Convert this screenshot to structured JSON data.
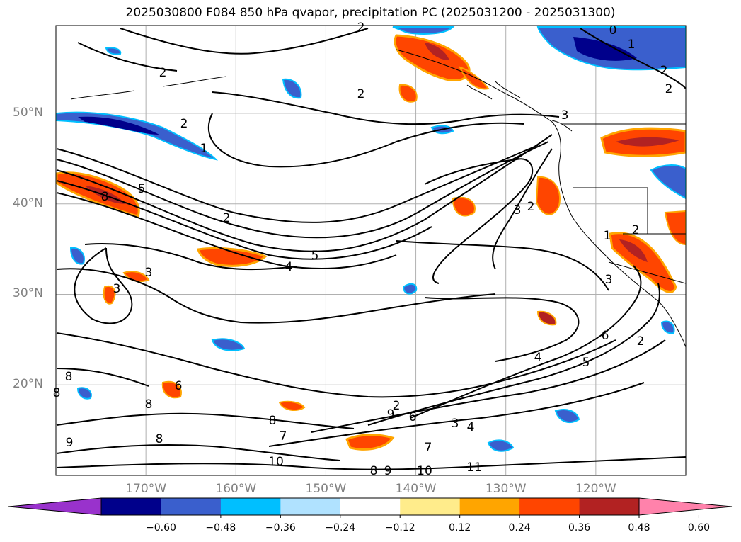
{
  "title": "2025030800 F084 850 hPa qvapor, precipitation PC (2025031200 - 2025031300)",
  "lat_axis": {
    "labels": [
      "50°N",
      "40°N",
      "30°N",
      "20°N"
    ],
    "values": [
      50,
      40,
      30,
      20
    ]
  },
  "lon_axis": {
    "labels": [
      "170°W",
      "160°W",
      "150°W",
      "140°W",
      "130°W",
      "120°W"
    ],
    "values": [
      -170,
      -160,
      -150,
      -140,
      -130,
      -120
    ]
  },
  "map_extent": {
    "lon_min": -180,
    "lon_max": -110,
    "lat_min": 10,
    "lat_max": 59.7
  },
  "grid": true,
  "colorbar": {
    "orientation": "horizontal",
    "extend": "both",
    "tick_labels": [
      "−0.60",
      "−0.48",
      "−0.36",
      "−0.24",
      "−0.12",
      "0.12",
      "0.24",
      "0.36",
      "0.48",
      "0.60"
    ],
    "tick_values": [
      -0.6,
      -0.48,
      -0.36,
      -0.24,
      -0.12,
      0.12,
      0.24,
      0.36,
      0.48,
      0.6
    ],
    "colors": [
      "#9932cc",
      "#00008b",
      "#3a5fcd",
      "#00bfff",
      "#b0e2ff",
      "#ffffff",
      "#ffec8b",
      "#ffa500",
      "#ff4500",
      "#b22222",
      "#ff82ab"
    ]
  },
  "contour_labels": [
    "2",
    "2",
    "1",
    "2",
    "2",
    "0",
    "1",
    "2",
    "2",
    "3",
    "5",
    "8",
    "2",
    "4",
    "5",
    "3",
    "3",
    "3",
    "2",
    "2",
    "1",
    "6",
    "5",
    "4",
    "2",
    "3",
    "8",
    "8",
    "6",
    "8",
    "9",
    "6",
    "7",
    "10",
    "8",
    "9",
    "8",
    "9",
    "3",
    "4",
    "7",
    "10",
    "11",
    "2",
    "8"
  ],
  "shaded_regions": [
    {
      "name": "aleutian-blue-band",
      "lon": -172,
      "lat": 49.5,
      "value": -0.48
    },
    {
      "name": "gulf-alaska-red",
      "lon": -134,
      "lat": 56,
      "value": 0.36
    },
    {
      "name": "bc-coast-blue",
      "lon": -125,
      "lat": 58.5,
      "value": -0.36
    },
    {
      "name": "pacific-nw-red",
      "lon": -114,
      "lat": 47,
      "value": 0.36
    },
    {
      "name": "california-red",
      "lon": -116,
      "lat": 34,
      "value": 0.48
    },
    {
      "name": "west-pacific-red",
      "lon": -174,
      "lat": 41,
      "value": 0.36
    },
    {
      "name": "mid-pacific-red",
      "lon": -160,
      "lat": 34,
      "value": 0.36
    },
    {
      "name": "oregon-offshore-red",
      "lon": -127,
      "lat": 41,
      "value": 0.36
    },
    {
      "name": "tropical-red",
      "lon": -145,
      "lat": 12.5,
      "value": 0.36
    }
  ]
}
